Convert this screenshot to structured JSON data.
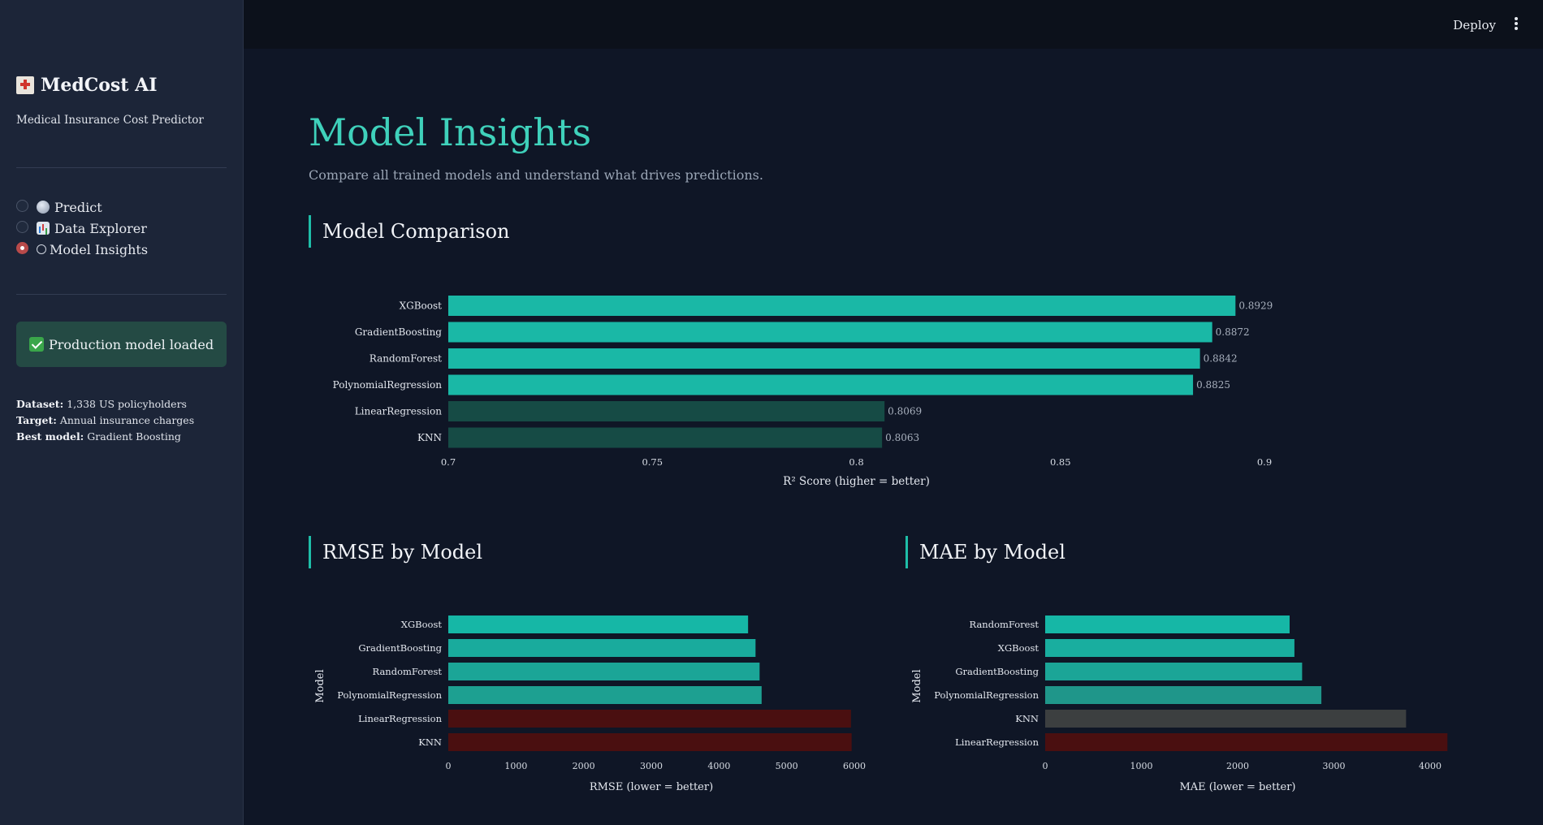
{
  "sidebar": {
    "brand": "MedCost AI",
    "subtitle": "Medical Insurance Cost Predictor",
    "nav": [
      {
        "label": "Predict",
        "icon": "crystal-ball-icon",
        "selected": false
      },
      {
        "label": "Data Explorer",
        "icon": "bar-chart-icon",
        "selected": false
      },
      {
        "label": "Model Insights",
        "icon": "robot-icon",
        "selected": true
      }
    ],
    "status": "Production model loaded",
    "meta": {
      "dataset_label": "Dataset:",
      "dataset_value": "1,338 US policyholders",
      "target_label": "Target:",
      "target_value": "Annual insurance charges",
      "best_label": "Best model:",
      "best_value": "Gradient Boosting"
    }
  },
  "header": {
    "deploy": "Deploy"
  },
  "main": {
    "title": "Model Insights",
    "subtitle": "Compare all trained models and understand what drives predictions.",
    "section_comparison": "Model Comparison",
    "section_rmse": "RMSE by Model",
    "section_mae": "MAE by Model"
  },
  "colors": {
    "accent": "#3fd1bb",
    "bar_top": "#1ab8a6",
    "bar_dim": "#164b45",
    "bar_bad": "#4a0f10",
    "bar_grey": "#3c3f40"
  },
  "chart_data": [
    {
      "type": "bar",
      "orientation": "horizontal",
      "title": "Model Comparison",
      "categories": [
        "XGBoost",
        "GradientBoosting",
        "RandomForest",
        "PolynomialRegression",
        "LinearRegression",
        "KNN"
      ],
      "values": [
        0.8929,
        0.8872,
        0.8842,
        0.8825,
        0.8069,
        0.8063
      ],
      "labels": [
        "0.8929",
        "0.8872",
        "0.8842",
        "0.8825",
        "0.8069",
        "0.8063"
      ],
      "bar_colors": [
        "#1ab8a6",
        "#1ab8a6",
        "#1ab8a6",
        "#1ab8a6",
        "#164b45",
        "#164b45"
      ],
      "xlim": [
        0.7,
        0.9
      ],
      "ticks": [
        0.7,
        0.75,
        0.8,
        0.85,
        0.9
      ],
      "tick_labels": [
        "0.7",
        "0.75",
        "0.8",
        "0.85",
        "0.9"
      ],
      "xlabel": "R² Score (higher = better)",
      "ylabel": ""
    },
    {
      "type": "bar",
      "orientation": "horizontal",
      "title": "RMSE by Model",
      "categories": [
        "XGBoost",
        "GradientBoosting",
        "RandomForest",
        "PolynomialRegression",
        "LinearRegression",
        "KNN"
      ],
      "values": [
        4430,
        4540,
        4600,
        4630,
        5950,
        5960
      ],
      "bar_colors": [
        "#16b7a6",
        "#19ab9d",
        "#1ba597",
        "#1da091",
        "#4a0f10",
        "#4a0f10"
      ],
      "xlim": [
        0,
        6000
      ],
      "ticks": [
        0,
        1000,
        2000,
        3000,
        4000,
        5000,
        6000
      ],
      "tick_labels": [
        "0",
        "1000",
        "2000",
        "3000",
        "4000",
        "5000",
        "6000"
      ],
      "xlabel": "RMSE (lower = better)",
      "ylabel": "Model"
    },
    {
      "type": "bar",
      "orientation": "horizontal",
      "title": "MAE by Model",
      "categories": [
        "RandomForest",
        "XGBoost",
        "GradientBoosting",
        "PolynomialRegression",
        "KNN",
        "LinearRegression"
      ],
      "values": [
        2540,
        2590,
        2670,
        2870,
        3750,
        4180
      ],
      "bar_colors": [
        "#16b7a6",
        "#19ae9f",
        "#1ba597",
        "#1f968a",
        "#3c3f40",
        "#4a0f10"
      ],
      "xlim": [
        0,
        4000
      ],
      "ticks": [
        0,
        1000,
        2000,
        3000,
        4000
      ],
      "tick_labels": [
        "0",
        "1000",
        "2000",
        "3000",
        "4000"
      ],
      "xlabel": "MAE (lower = better)",
      "ylabel": "Model"
    }
  ]
}
